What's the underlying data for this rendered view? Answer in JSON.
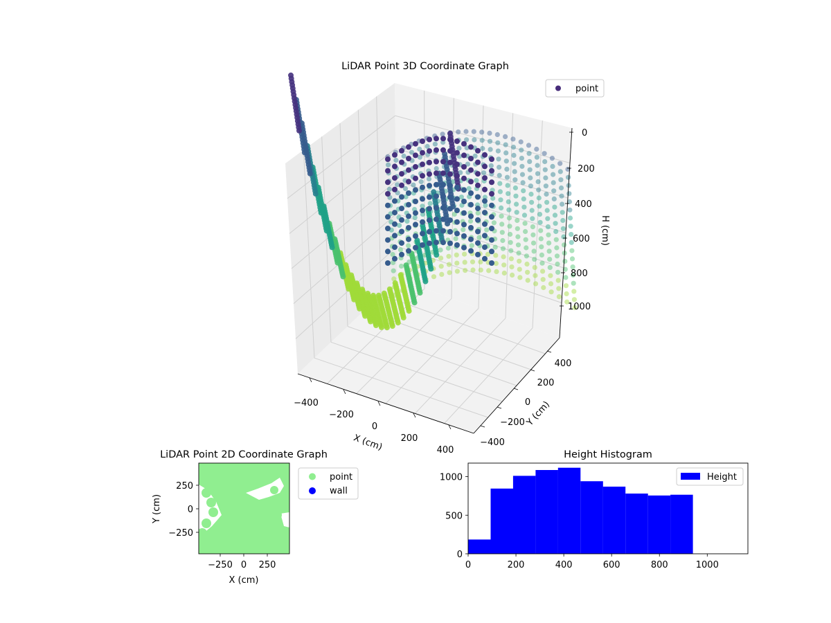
{
  "chart_data": [
    {
      "type": "scatter",
      "projection": "3d",
      "title": "LiDAR Point 3D Coordinate Graph",
      "xlabel": "X (cm)",
      "ylabel": "Y (cm)",
      "zlabel": "H (cm)",
      "x_ticks": [
        "−400",
        "−200",
        "0",
        "200",
        "400"
      ],
      "y_ticks": [
        "−400",
        "−200",
        "0",
        "200",
        "400"
      ],
      "z_ticks": [
        "0",
        "200",
        "400",
        "600",
        "800",
        "1000"
      ],
      "xlim": [
        -470,
        470
      ],
      "ylim": [
        -470,
        470
      ],
      "zlim": [
        0,
        1150
      ],
      "z_inverted": true,
      "grid": true,
      "legend": {
        "position": "top-right",
        "entries": [
          "point"
        ]
      },
      "series": [
        {
          "name": "point",
          "colormap": "viridis",
          "color_by": "height",
          "description_of_shape": "bowl-shaped scan rings: height rises with distance from the sensor column",
          "rings": 18,
          "points_per_ring": 24
        }
      ]
    },
    {
      "type": "scatter",
      "title": "LiDAR Point 2D Coordinate Graph",
      "xlabel": "X (cm)",
      "ylabel": "Y (cm)",
      "x_ticks": [
        "−250",
        "0",
        "250"
      ],
      "y_ticks": [
        "250",
        "0",
        "−250"
      ],
      "xlim": [
        -480,
        480
      ],
      "ylim": [
        -480,
        480
      ],
      "legend": {
        "position": "right",
        "entries": [
          "point",
          "wall"
        ]
      },
      "series": [
        {
          "name": "point",
          "color": "#90ee90"
        },
        {
          "name": "wall",
          "color": "#0000ff"
        }
      ]
    },
    {
      "type": "bar",
      "title": "Height Histogram",
      "xlabel": "",
      "ylabel": "",
      "bin_edges": [
        0,
        94,
        188,
        282,
        376,
        470,
        564,
        658,
        752,
        846,
        940
      ],
      "values": [
        185,
        845,
        1010,
        1085,
        1115,
        940,
        870,
        780,
        755,
        765
      ],
      "xlim": [
        0,
        1170
      ],
      "ylim": [
        0,
        1175
      ],
      "x_ticks": [
        "0",
        "200",
        "400",
        "600",
        "800",
        "1000"
      ],
      "y_ticks": [
        "0",
        "500",
        "1000"
      ],
      "legend": {
        "position": "top-right",
        "entries": [
          "Height"
        ]
      },
      "series": [
        {
          "name": "Height",
          "color": "#0000ff"
        }
      ]
    }
  ]
}
